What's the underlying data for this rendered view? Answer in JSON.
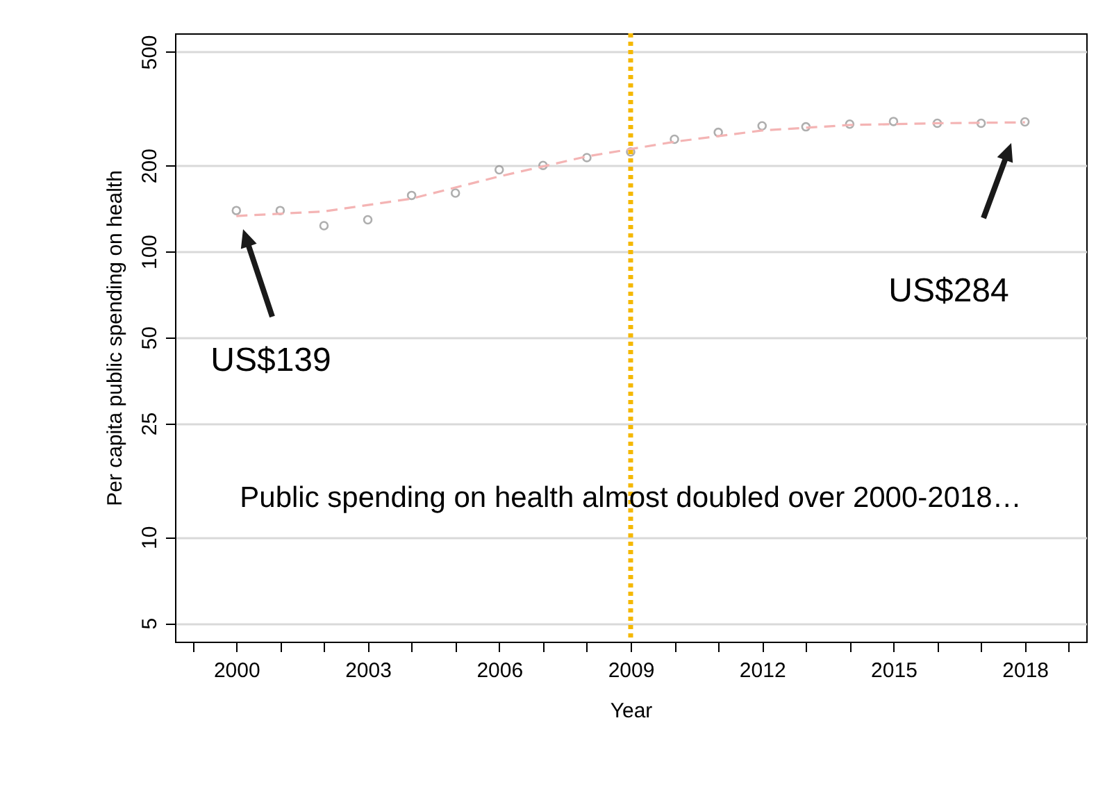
{
  "chart_data": {
    "type": "scatter",
    "xlabel": "Year",
    "ylabel": "Per capita public spending on health",
    "series": [
      {
        "type": "scatter",
        "color": "#8c8c8c",
        "marker": "circle",
        "x": [
          2000,
          2001,
          2002,
          2003,
          2004,
          2005,
          2006,
          2007,
          2008,
          2009,
          2010,
          2011,
          2012,
          2013,
          2014,
          2015,
          2016,
          2017,
          2018
        ],
        "values": [
          139,
          139,
          123,
          129,
          157,
          160,
          193,
          200,
          213,
          223,
          247,
          261,
          275,
          273,
          279,
          285,
          281,
          281,
          284
        ]
      },
      {
        "type": "line",
        "color": "#f4b4b4",
        "line_style": "dashed",
        "marker": "none",
        "x": [
          2000,
          2002,
          2004,
          2006,
          2008,
          2010,
          2012,
          2014,
          2016,
          2018
        ],
        "values": [
          133,
          138,
          153,
          183,
          215,
          242,
          265,
          277,
          281,
          283
        ]
      }
    ],
    "xlim": [
      1998.6,
      2019.4
    ],
    "xticks": [
      {
        "value": 1999,
        "label": null
      },
      2000,
      {
        "value": 2001,
        "label": null
      },
      {
        "value": 2002,
        "label": null
      },
      2003,
      {
        "value": 2004,
        "label": null
      },
      {
        "value": 2005,
        "label": null
      },
      2006,
      {
        "value": 2007,
        "label": null
      },
      {
        "value": 2008,
        "label": null
      },
      2009,
      {
        "value": 2010,
        "label": null
      },
      {
        "value": 2011,
        "label": null
      },
      2012,
      {
        "value": 2013,
        "label": null
      },
      {
        "value": 2014,
        "label": null
      },
      2015,
      {
        "value": 2016,
        "label": null
      },
      {
        "value": 2017,
        "label": null
      },
      2018,
      {
        "value": 2019,
        "label": null
      }
    ],
    "log": "y",
    "ylim": [
      4.3,
      580
    ],
    "yticks": [
      5,
      10,
      25,
      50,
      100,
      200,
      500
    ],
    "grid": "y",
    "ref_lines": [
      {
        "axis": "x",
        "value": 2009,
        "color": "#f5b800",
        "line_style": "dotted"
      }
    ],
    "annotations": [
      "US$139",
      "US$284",
      "Public spending on health almost doubled over 2000-2018…"
    ]
  }
}
